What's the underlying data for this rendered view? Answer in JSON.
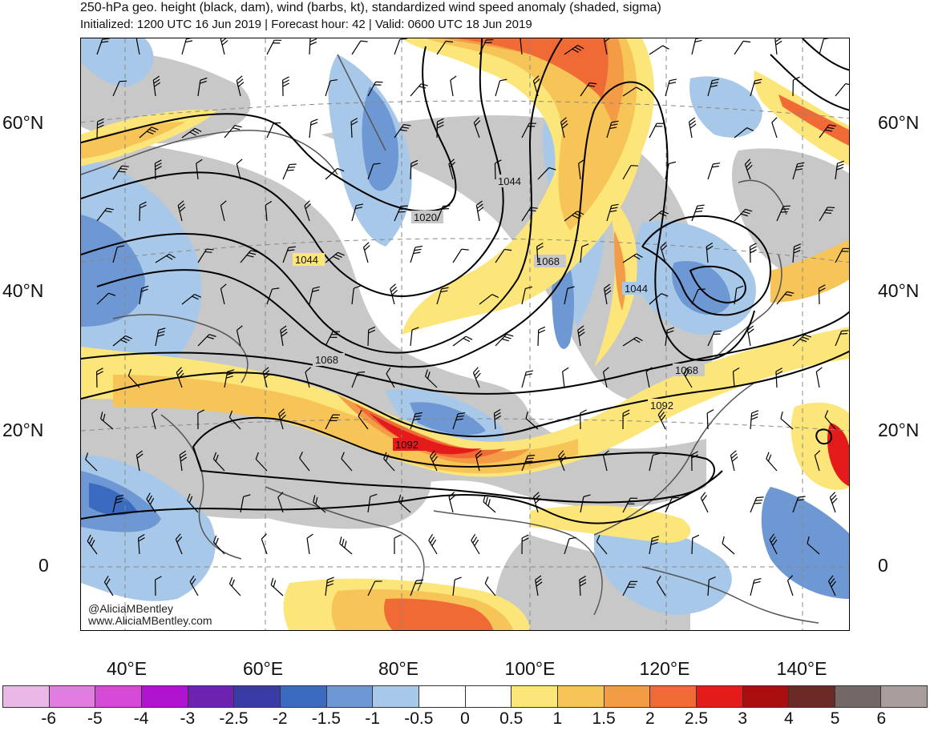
{
  "title": "250-hPa geo. height (black, dam), wind (barbs, kt), standardized wind speed anomaly (shaded, sigma)",
  "subtitle": "Initialized: 1200 UTC 16 Jun 2019 | Forecast hour: 42 | Valid: 0600 UTC 18 Jun 2019",
  "credits": [
    "@AliciaMBentley",
    "www.AliciaMBentley.com"
  ],
  "lat_labels": [
    "60°N",
    "40°N",
    "20°N",
    "0"
  ],
  "lon_labels": [
    "40°E",
    "60°E",
    "80°E",
    "100°E",
    "120°E",
    "140°E"
  ],
  "contour_labels": [
    "1020",
    "1044",
    "1044",
    "1068",
    "1044",
    "1068",
    "1068",
    "1092",
    "1092"
  ],
  "colorbar": {
    "labels": [
      "-6",
      "-5",
      "-4",
      "-3",
      "-2.5",
      "-2",
      "-1.5",
      "-1",
      "-0.5",
      "0",
      "0.5",
      "1",
      "1.5",
      "2",
      "2.5",
      "3",
      "4",
      "5",
      "6"
    ],
    "colors": [
      "#e9b8e6",
      "#e27de0",
      "#d44bd8",
      "#b114cf",
      "#6d23b0",
      "#3b3ba8",
      "#3a6bc0",
      "#6d98d3",
      "#a7c8e8",
      "#ffffff",
      "#ffffff",
      "#fce67a",
      "#f6c457",
      "#f39b45",
      "#ef6a35",
      "#e31b1b",
      "#a90f0f",
      "#6c2a27",
      "#736865",
      "#a89d9b"
    ]
  },
  "colors": {
    "neutral_gray": "#c8c8c8",
    "ocean_white": "#ffffff",
    "contour": "#000000",
    "coastline": "#555555"
  }
}
